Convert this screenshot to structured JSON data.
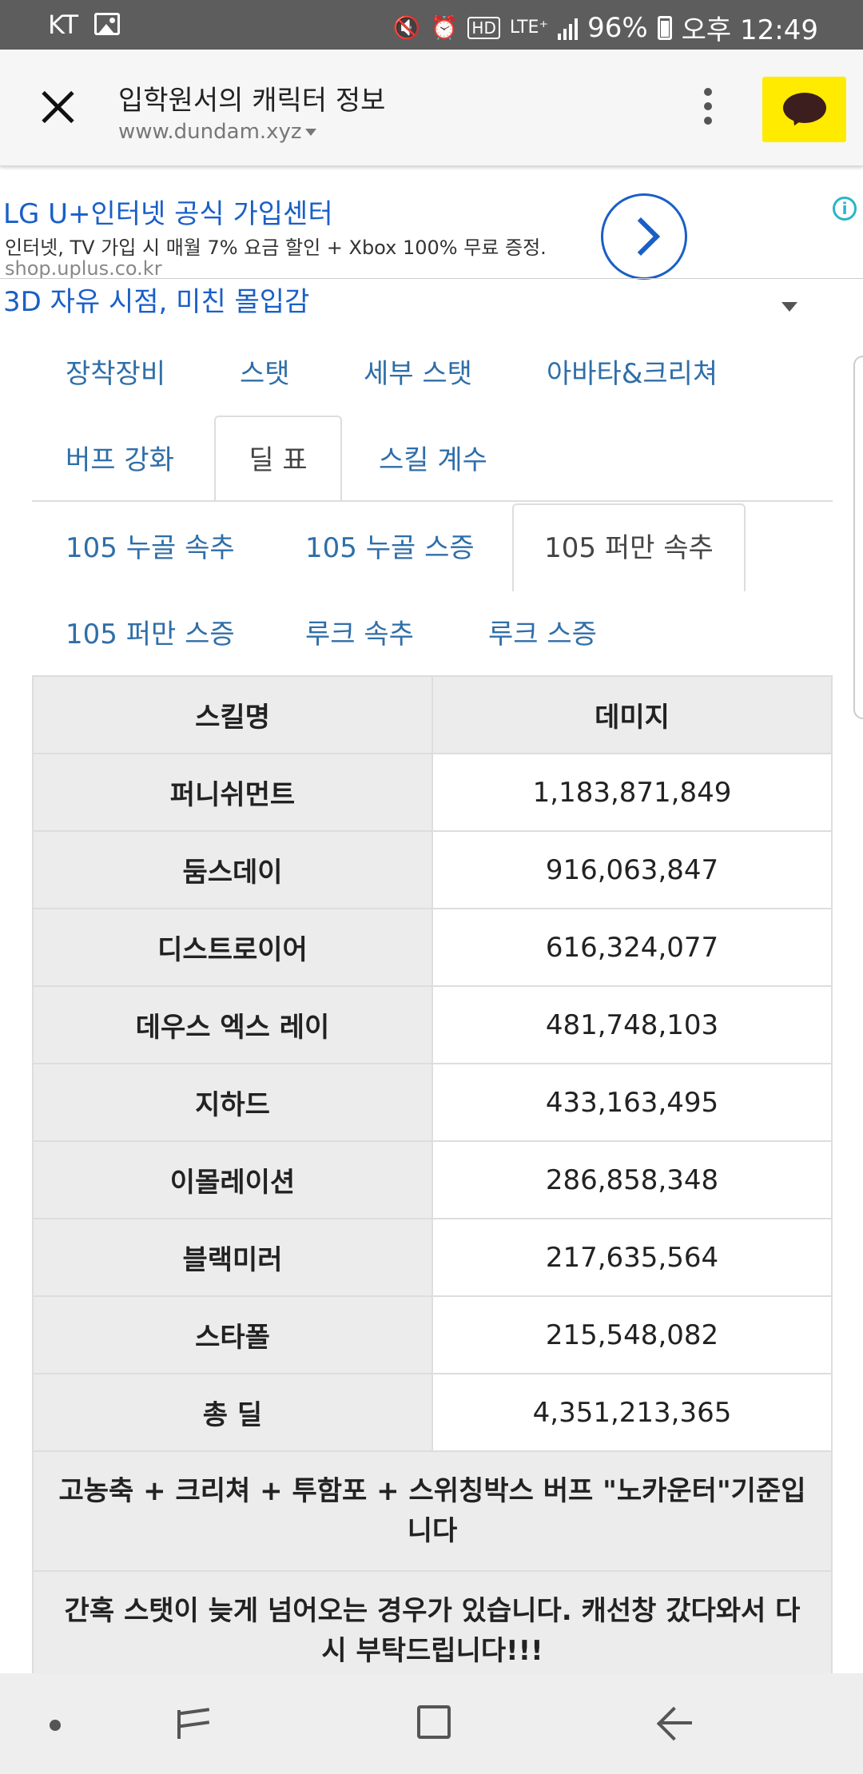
{
  "status_bar": {
    "carrier": "KT",
    "icons": [
      "gallery-icon",
      "mute-icon",
      "alarm-icon",
      "hd-icon",
      "lte-plus-icon",
      "signal-icon",
      "battery-icon"
    ],
    "hd": "HD",
    "lte": "LTE⁺",
    "battery": "96%",
    "time": "오후 12:49"
  },
  "toolbar": {
    "title": "입학원서의 캐릭터 정보",
    "url": "www.dundam.xyz"
  },
  "ad": {
    "title": "LG U+인터넷 공식 가입센터",
    "description": "인터넷, TV 가입 시 매월 7% 요금 할인 + Xbox 100% 무료 증정.",
    "url": "shop.uplus.co.kr",
    "info_glyph": "i",
    "secondary_title": "3D 자유 시점, 미친 몰입감"
  },
  "main_tabs": [
    {
      "label": "장착장비"
    },
    {
      "label": "스탯"
    },
    {
      "label": "세부 스탯"
    },
    {
      "label": "아바타&크리쳐"
    },
    {
      "label": "버프 강화"
    },
    {
      "label": "딜 표",
      "active": true
    },
    {
      "label": "스킬 계수"
    }
  ],
  "sub_tabs": [
    {
      "label": "105 누골 속추"
    },
    {
      "label": "105 누골 스증"
    },
    {
      "label": "105 퍼만 속추",
      "active": true
    },
    {
      "label": "105 퍼만 스증"
    },
    {
      "label": "루크 속추"
    },
    {
      "label": "루크 스증"
    }
  ],
  "table": {
    "headers": [
      "스킬명",
      "데미지"
    ],
    "rows": [
      {
        "skill": "퍼니쉬먼트",
        "damage": "1,183,871,849"
      },
      {
        "skill": "둠스데이",
        "damage": "916,063,847"
      },
      {
        "skill": "디스트로이어",
        "damage": "616,324,077"
      },
      {
        "skill": "데우스 엑스 레이",
        "damage": "481,748,103"
      },
      {
        "skill": "지하드",
        "damage": "433,163,495"
      },
      {
        "skill": "이몰레이션",
        "damage": "286,858,348"
      },
      {
        "skill": "블랙미러",
        "damage": "217,635,564"
      },
      {
        "skill": "스타폴",
        "damage": "215,548,082"
      },
      {
        "skill": "총 딜",
        "damage": "4,351,213,365"
      }
    ],
    "notes": [
      "고농축 + 크리쳐 + 투함포 + 스위칭박스 버프 \"노카운터\"기준입니다",
      "간혹 스탯이 늦게 넘어오는 경우가 있습니다. 캐선창 갔다와서 다시 부탁드립니다!!!"
    ]
  },
  "colors": {
    "status_bar": "#5d5d5d",
    "tab_link": "#2f6ea8",
    "ad_link": "#1a5fc7",
    "kakao_yellow": "#ffeb00",
    "table_header_bg": "#ececec"
  }
}
